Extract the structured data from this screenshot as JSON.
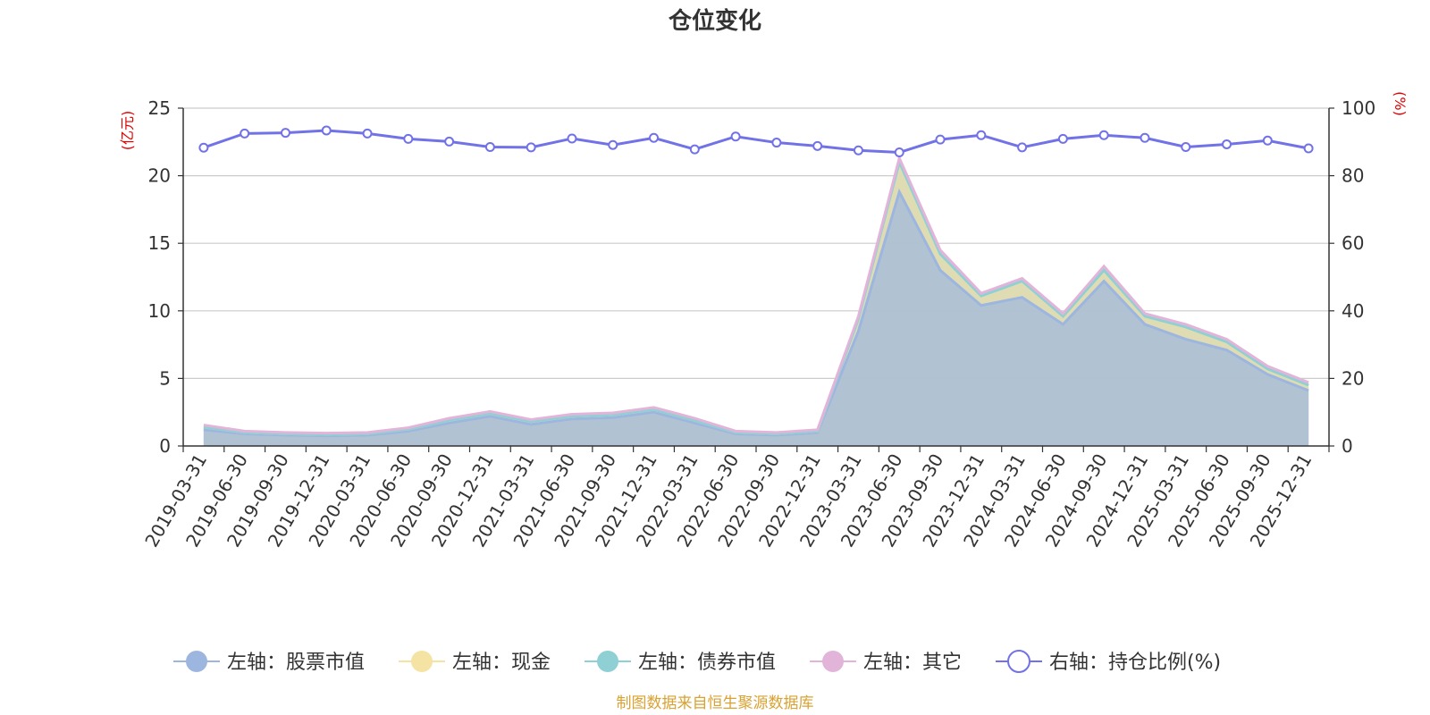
{
  "chart_data": {
    "type": "area",
    "title": "仓位变化",
    "left_unit": "(亿元)",
    "right_unit": "(%)",
    "left_ylim": [
      0,
      25
    ],
    "left_ticks": [
      "0",
      "5",
      "10",
      "15",
      "20",
      "25"
    ],
    "right_ylim": [
      0,
      100
    ],
    "right_ticks": [
      "0",
      "20",
      "40",
      "60",
      "80",
      "100"
    ],
    "categories": [
      "2019-03-31",
      "2019-06-30",
      "2019-09-30",
      "2019-12-31",
      "2020-03-31",
      "2020-06-30",
      "2020-09-30",
      "2020-12-31",
      "2021-03-31",
      "2021-06-30",
      "2021-09-30",
      "2021-12-31",
      "2022-03-31",
      "2022-06-30",
      "2022-09-30",
      "2022-12-31",
      "2023-03-31",
      "2023-06-30",
      "2023-09-30",
      "2023-12-31",
      "2024-03-31",
      "2024-06-30",
      "2024-09-30",
      "2024-12-31",
      "2025-03-31",
      "2025-06-30",
      "2025-09-30",
      "2025-12-31"
    ],
    "series": [
      {
        "name": "左轴：股票市值",
        "axis": "left",
        "stack": true,
        "color": "#9db6e0",
        "values": [
          1.2,
          0.9,
          0.8,
          0.75,
          0.8,
          1.1,
          1.7,
          2.2,
          1.6,
          2.0,
          2.1,
          2.5,
          1.7,
          0.9,
          0.8,
          1.0,
          8.5,
          18.8,
          13.0,
          10.4,
          11.0,
          9.0,
          12.2,
          9.0,
          7.9,
          7.1,
          5.3,
          4.1
        ]
      },
      {
        "name": "左轴：现金",
        "axis": "left",
        "stack": true,
        "color": "#f5e3a4",
        "values": [
          0.2,
          0.1,
          0.1,
          0.1,
          0.1,
          0.15,
          0.2,
          0.2,
          0.2,
          0.2,
          0.2,
          0.2,
          0.2,
          0.1,
          0.1,
          0.1,
          0.9,
          2.2,
          1.2,
          0.7,
          1.2,
          0.6,
          0.8,
          0.6,
          0.9,
          0.6,
          0.4,
          0.4
        ]
      },
      {
        "name": "左轴：债券市值",
        "axis": "left",
        "stack": true,
        "color": "#8fd0d4",
        "values": [
          0,
          0,
          0,
          0,
          0,
          0,
          0,
          0,
          0,
          0,
          0,
          0,
          0,
          0,
          0,
          0,
          0,
          0,
          0,
          0,
          0,
          0,
          0,
          0,
          0,
          0,
          0,
          0
        ]
      },
      {
        "name": "左轴：其它",
        "axis": "left",
        "stack": true,
        "color": "#e3b4d9",
        "values": [
          0.15,
          0.1,
          0.1,
          0.1,
          0.1,
          0.1,
          0.15,
          0.15,
          0.15,
          0.15,
          0.15,
          0.15,
          0.15,
          0.1,
          0.1,
          0.1,
          0.2,
          0.3,
          0.3,
          0.2,
          0.2,
          0.2,
          0.3,
          0.2,
          0.2,
          0.2,
          0.2,
          0.2
        ]
      },
      {
        "name": "右轴：持仓比例(%)",
        "axis": "right",
        "stack": false,
        "color": "#7272e8",
        "values": [
          88.3,
          92.5,
          92.7,
          93.4,
          92.5,
          90.9,
          90.1,
          88.5,
          88.4,
          91.0,
          89.1,
          91.2,
          87.8,
          91.6,
          89.8,
          88.8,
          87.5,
          86.9,
          90.7,
          92.0,
          88.4,
          90.9,
          92.0,
          91.2,
          88.5,
          89.3,
          90.4,
          88.1
        ]
      }
    ],
    "legend": [
      "左轴：股票市值",
      "左轴：现金",
      "左轴：债券市值",
      "左轴：其它",
      "右轴：持仓比例(%)"
    ],
    "legend_position": "bottom",
    "grid": true,
    "source": "制图数据来自恒生聚源数据库"
  }
}
